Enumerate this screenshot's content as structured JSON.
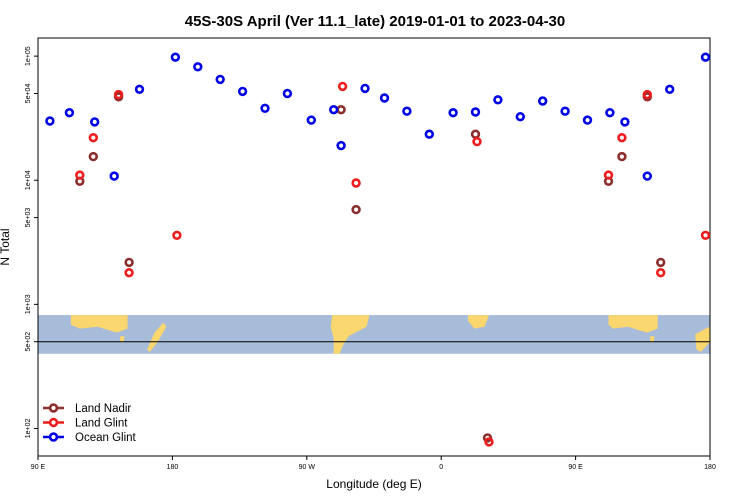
{
  "chart_data": {
    "type": "scatter",
    "title": "45S-30S April (Ver 11.1_late)   2019-01-01 to 2023-04-30",
    "xlabel": "Longitude (deg E)",
    "ylabel": "N Total",
    "x_scale": "linear",
    "y_scale": "log",
    "xlim": [
      90,
      540
    ],
    "ylim": [
      60,
      140000
    ],
    "x_ticks": [
      {
        "value": 90,
        "label": "90 E"
      },
      {
        "value": 180,
        "label": "180"
      },
      {
        "value": 270,
        "label": "90 W"
      },
      {
        "value": 360,
        "label": "0"
      },
      {
        "value": 450,
        "label": "90 E"
      },
      {
        "value": 540,
        "label": "180"
      }
    ],
    "y_ticks": [
      {
        "value": 100,
        "label": "1e+02"
      },
      {
        "value": 500,
        "label": "5e+02"
      },
      {
        "value": 1000,
        "label": "1e+03"
      },
      {
        "value": 5000,
        "label": "5e+03"
      },
      {
        "value": 10000,
        "label": "1e+04"
      },
      {
        "value": 50000,
        "label": "5e+04"
      },
      {
        "value": 100000,
        "label": "1e+05"
      }
    ],
    "map_band": {
      "y_min": 400,
      "y_max": 820,
      "ocean_color": "#a7bcd9",
      "land_color": "#f9d76e"
    },
    "legend_position": "bottom-left",
    "series": [
      {
        "name": "Land Nadir",
        "color": "#8b2e2e",
        "points": [
          {
            "x": 118,
            "y": 9800
          },
          {
            "x": 127,
            "y": 15500
          },
          {
            "x": 144,
            "y": 47000
          },
          {
            "x": 151,
            "y": 2180
          },
          {
            "x": 293,
            "y": 37000
          },
          {
            "x": 303,
            "y": 5800
          },
          {
            "x": 383,
            "y": 23500
          },
          {
            "x": 472,
            "y": 9800
          },
          {
            "x": 481,
            "y": 15500
          },
          {
            "x": 498,
            "y": 47000
          },
          {
            "x": 507,
            "y": 2180
          },
          {
            "x": 391,
            "y": 84
          }
        ]
      },
      {
        "name": "Land Glint",
        "color": "#ee1c1c",
        "points": [
          {
            "x": 118,
            "y": 11000
          },
          {
            "x": 127,
            "y": 22000
          },
          {
            "x": 144,
            "y": 49000
          },
          {
            "x": 151,
            "y": 1800
          },
          {
            "x": 183,
            "y": 3600
          },
          {
            "x": 294,
            "y": 57000
          },
          {
            "x": 303,
            "y": 9500
          },
          {
            "x": 384,
            "y": 20500
          },
          {
            "x": 472,
            "y": 11000
          },
          {
            "x": 481,
            "y": 22000
          },
          {
            "x": 498,
            "y": 49000
          },
          {
            "x": 507,
            "y": 1800
          },
          {
            "x": 537,
            "y": 3600
          },
          {
            "x": 392,
            "y": 78
          }
        ]
      },
      {
        "name": "Ocean Glint",
        "color": "#0000e6",
        "points": [
          {
            "x": 98,
            "y": 30000
          },
          {
            "x": 111,
            "y": 35000
          },
          {
            "x": 128,
            "y": 29500
          },
          {
            "x": 141,
            "y": 10800
          },
          {
            "x": 158,
            "y": 54000
          },
          {
            "x": 182,
            "y": 98000
          },
          {
            "x": 197,
            "y": 82000
          },
          {
            "x": 212,
            "y": 65000
          },
          {
            "x": 227,
            "y": 52000
          },
          {
            "x": 242,
            "y": 38000
          },
          {
            "x": 257,
            "y": 50000
          },
          {
            "x": 273,
            "y": 30500
          },
          {
            "x": 288,
            "y": 37000
          },
          {
            "x": 293,
            "y": 19000
          },
          {
            "x": 309,
            "y": 55000
          },
          {
            "x": 322,
            "y": 46000
          },
          {
            "x": 337,
            "y": 36000
          },
          {
            "x": 352,
            "y": 23500
          },
          {
            "x": 368,
            "y": 35000
          },
          {
            "x": 383,
            "y": 35500
          },
          {
            "x": 398,
            "y": 44500
          },
          {
            "x": 413,
            "y": 32500
          },
          {
            "x": 428,
            "y": 43500
          },
          {
            "x": 443,
            "y": 36000
          },
          {
            "x": 458,
            "y": 30500
          },
          {
            "x": 473,
            "y": 35000
          },
          {
            "x": 483,
            "y": 29500
          },
          {
            "x": 498,
            "y": 10800
          },
          {
            "x": 513,
            "y": 54000
          },
          {
            "x": 537,
            "y": 98000
          }
        ]
      }
    ]
  }
}
